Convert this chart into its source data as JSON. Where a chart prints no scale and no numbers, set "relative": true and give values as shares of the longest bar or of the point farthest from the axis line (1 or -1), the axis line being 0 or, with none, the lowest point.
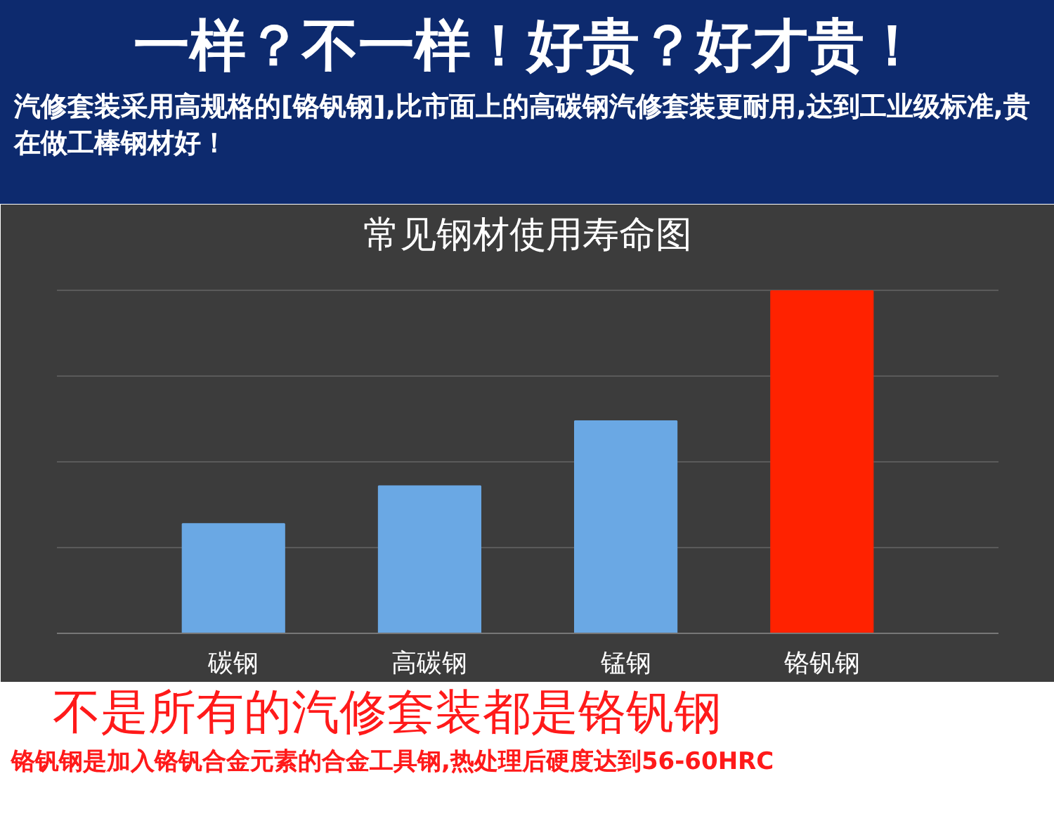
{
  "chart_data": {
    "type": "bar",
    "title": "常见钢材使用寿命图",
    "categories": [
      "碳钢",
      "高碳钢",
      "锰钢",
      "铬钒钢"
    ],
    "values": [
      0.32,
      0.43,
      0.62,
      1
    ],
    "colors": [
      "#6aa8e4",
      "#6aa8e4",
      "#6aa8e4",
      "#ff2200"
    ],
    "relative": true,
    "grid": "y",
    "annotations": [
      "一样？不一样！好贵？好才贵！",
      "汽修套装采用高规格的[铬钒钢],比市面上的高碳钢汽修套装更耐用,达到工业级标准,贵在做工棒钢材好！",
      "不是所有的汽修套装都是铬钒钢",
      "铬钒钢是加入铬钒合金元素的合金工具钢,热处理后硬度达到56-60HRC"
    ]
  }
}
